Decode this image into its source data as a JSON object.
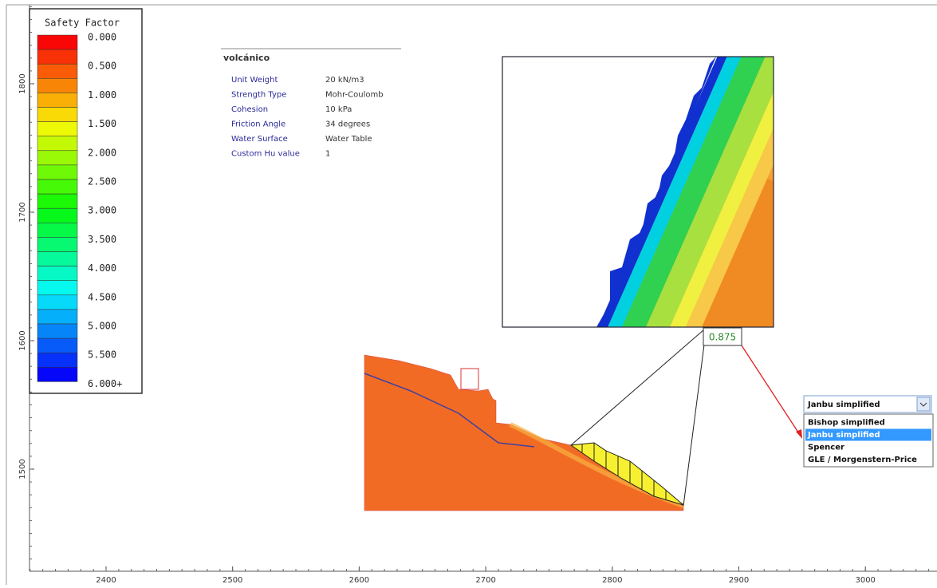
{
  "legend": {
    "title": "Safety Factor",
    "labels": [
      "0.000",
      "0.500",
      "1.000",
      "1.500",
      "2.000",
      "2.500",
      "3.000",
      "3.500",
      "4.000",
      "4.500",
      "5.000",
      "5.500",
      "6.000+"
    ]
  },
  "material": {
    "name": "volcánico",
    "properties": [
      [
        "Unit Weight",
        "20 kN/m3"
      ],
      [
        "Strength Type",
        "Mohr-Coulomb"
      ],
      [
        "Cohesion",
        "10 kPa"
      ],
      [
        "Friction Angle",
        "34 degrees"
      ],
      [
        "Water Surface",
        "Water Table"
      ],
      [
        "Custom Hu value",
        "1"
      ]
    ]
  },
  "axes": {
    "x_ticks": [
      2400,
      2500,
      2600,
      2700,
      2800,
      2900,
      3000
    ],
    "y_ticks": [
      1800,
      1700,
      1600,
      1500
    ]
  },
  "result": {
    "factor": "0.875"
  },
  "method_select": {
    "selected": "Janbu simplified",
    "options": [
      "Bishop simplified",
      "Janbu simplified",
      "Spencer",
      "GLE / Morgenstern-Price"
    ]
  }
}
